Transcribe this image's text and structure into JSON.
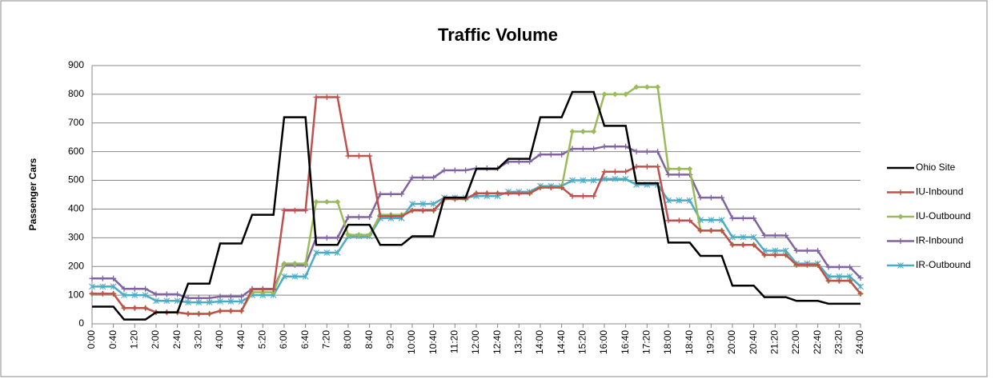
{
  "chart_data": {
    "type": "line",
    "title": "Traffic Volume",
    "y_label": "Passenger Cars",
    "categories": [
      "0:00",
      null,
      "0:40",
      null,
      "1:20",
      null,
      "2:00",
      null,
      "2:40",
      null,
      "3:20",
      null,
      "4:00",
      null,
      "4:40",
      null,
      "5:20",
      null,
      "6:00",
      null,
      "6:40",
      null,
      "7:20",
      null,
      "8:00",
      null,
      "8:40",
      null,
      "9:20",
      null,
      "10:00",
      null,
      "10:40",
      null,
      "11:20",
      null,
      "12:00",
      null,
      "12:40",
      null,
      "13:20",
      null,
      "14:00",
      null,
      "14:40",
      null,
      "15:20",
      null,
      "16:00",
      null,
      "16:40",
      null,
      "17:20",
      null,
      "18:00",
      null,
      "18:40",
      null,
      "19:20",
      null,
      "20:00",
      null,
      "20:40",
      null,
      "21:20",
      null,
      "22:00",
      null,
      "22:40",
      null,
      "23:20",
      null,
      "24:00"
    ],
    "series": [
      {
        "name": "Ohio Site",
        "color": "#000000",
        "marker": "none",
        "values": [
          60,
          60,
          60,
          15,
          15,
          15,
          40,
          40,
          40,
          140,
          140,
          140,
          280,
          280,
          280,
          380,
          380,
          380,
          720,
          720,
          720,
          275,
          275,
          275,
          345,
          345,
          345,
          275,
          275,
          275,
          305,
          305,
          305,
          440,
          440,
          440,
          540,
          540,
          540,
          575,
          575,
          575,
          720,
          720,
          720,
          808,
          808,
          808,
          690,
          690,
          690,
          490,
          490,
          490,
          283,
          283,
          283,
          237,
          237,
          237,
          133,
          133,
          133,
          93,
          93,
          93,
          80,
          80,
          80,
          70,
          70,
          70,
          70
        ]
      },
      {
        "name": "IU-Inbound",
        "color": "#c0504d",
        "marker": "plus",
        "values": [
          105,
          105,
          105,
          55,
          55,
          55,
          40,
          40,
          40,
          35,
          35,
          35,
          45,
          45,
          45,
          120,
          120,
          120,
          395,
          395,
          395,
          790,
          790,
          790,
          585,
          585,
          585,
          375,
          375,
          375,
          395,
          395,
          395,
          435,
          435,
          435,
          455,
          455,
          455,
          455,
          455,
          455,
          475,
          475,
          475,
          445,
          445,
          445,
          530,
          530,
          530,
          548,
          548,
          548,
          360,
          360,
          360,
          325,
          325,
          325,
          275,
          275,
          275,
          240,
          240,
          240,
          205,
          205,
          205,
          150,
          150,
          150,
          105
        ]
      },
      {
        "name": "IU-Outbound",
        "color": "#9bbb59",
        "marker": "diamond",
        "values": [
          105,
          105,
          105,
          55,
          55,
          55,
          40,
          40,
          40,
          35,
          35,
          35,
          45,
          45,
          45,
          110,
          110,
          110,
          210,
          210,
          210,
          425,
          425,
          425,
          310,
          310,
          310,
          380,
          380,
          380,
          395,
          395,
          395,
          435,
          435,
          435,
          455,
          455,
          455,
          455,
          455,
          455,
          475,
          475,
          475,
          670,
          670,
          670,
          800,
          800,
          800,
          825,
          825,
          825,
          540,
          540,
          540,
          325,
          325,
          325,
          275,
          275,
          275,
          240,
          240,
          240,
          205,
          205,
          205,
          150,
          150,
          150,
          105
        ]
      },
      {
        "name": "IR-Inbound",
        "color": "#8064a2",
        "marker": "plus",
        "values": [
          158,
          158,
          158,
          122,
          122,
          122,
          103,
          103,
          103,
          90,
          90,
          90,
          95,
          95,
          95,
          122,
          122,
          122,
          205,
          205,
          205,
          300,
          300,
          300,
          372,
          372,
          372,
          452,
          452,
          452,
          510,
          510,
          510,
          535,
          535,
          535,
          542,
          542,
          542,
          565,
          565,
          565,
          590,
          590,
          590,
          610,
          610,
          610,
          618,
          618,
          618,
          600,
          600,
          600,
          520,
          520,
          520,
          440,
          440,
          440,
          368,
          368,
          368,
          308,
          308,
          308,
          255,
          255,
          255,
          198,
          198,
          198,
          160
        ]
      },
      {
        "name": "IR-Outbound",
        "color": "#4bacc6",
        "marker": "star",
        "values": [
          130,
          130,
          130,
          100,
          100,
          100,
          80,
          80,
          80,
          75,
          75,
          75,
          78,
          78,
          78,
          100,
          100,
          100,
          165,
          165,
          165,
          248,
          248,
          248,
          305,
          305,
          305,
          368,
          368,
          368,
          418,
          418,
          418,
          440,
          440,
          440,
          445,
          445,
          445,
          460,
          460,
          460,
          480,
          480,
          480,
          500,
          500,
          500,
          505,
          505,
          505,
          485,
          485,
          485,
          430,
          430,
          430,
          362,
          362,
          362,
          302,
          302,
          302,
          255,
          255,
          255,
          210,
          210,
          210,
          165,
          165,
          165,
          130
        ]
      }
    ],
    "ylim": [
      0,
      900
    ],
    "yticks": [
      0,
      100,
      200,
      300,
      400,
      500,
      600,
      700,
      800,
      900
    ],
    "grid": true,
    "legend": "right"
  }
}
